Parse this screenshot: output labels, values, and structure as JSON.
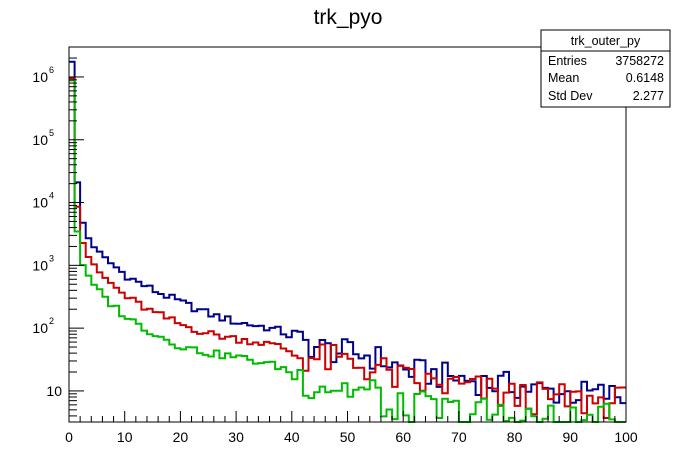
{
  "chart_data": {
    "type": "histogram",
    "title": "trk_pyo",
    "xlabel": "",
    "ylabel": "",
    "x_range": [
      0,
      100
    ],
    "y_range": [
      3.2,
      3000000
    ],
    "y_scale": "log",
    "bin_width": 1,
    "x_ticks": [
      0,
      10,
      20,
      30,
      40,
      50,
      60,
      70,
      80,
      90,
      100
    ],
    "x_tick_labels": [
      "0",
      "10",
      "20",
      "30",
      "40",
      "50",
      "60",
      "70",
      "80",
      "90",
      "100"
    ],
    "y_ticks": [
      {
        "value": 10,
        "base": "10",
        "exp": ""
      },
      {
        "value": 100,
        "base": "10",
        "exp": "2"
      },
      {
        "value": 1000,
        "base": "10",
        "exp": "3"
      },
      {
        "value": 10000,
        "base": "10",
        "exp": "4"
      },
      {
        "value": 100000,
        "base": "10",
        "exp": "5"
      },
      {
        "value": 1000000,
        "base": "10",
        "exp": "6"
      }
    ],
    "series": [
      {
        "color": "#00008b",
        "anchors": [
          [
            0,
            1800000
          ],
          [
            1,
            60000
          ],
          [
            2,
            7000
          ],
          [
            3,
            3200
          ],
          [
            4,
            2300
          ],
          [
            5,
            1700
          ],
          [
            6,
            1350
          ],
          [
            8,
            1000
          ],
          [
            10,
            720
          ],
          [
            12,
            560
          ],
          [
            15,
            410
          ],
          [
            20,
            260
          ],
          [
            25,
            170
          ],
          [
            30,
            125
          ],
          [
            35,
            105
          ],
          [
            38,
            90
          ],
          [
            42,
            58
          ],
          [
            46,
            46
          ],
          [
            50,
            40
          ],
          [
            53,
            38
          ],
          [
            56,
            32
          ],
          [
            60,
            22
          ],
          [
            64,
            19
          ],
          [
            68,
            17
          ],
          [
            72,
            15
          ],
          [
            76,
            13
          ],
          [
            80,
            12
          ],
          [
            85,
            10
          ],
          [
            90,
            9
          ],
          [
            95,
            9
          ],
          [
            100,
            8
          ]
        ]
      },
      {
        "color": "#cc0000",
        "anchors": [
          [
            0,
            1000000
          ],
          [
            1,
            25000
          ],
          [
            2,
            3200
          ],
          [
            3,
            1650
          ],
          [
            4,
            1150
          ],
          [
            5,
            860
          ],
          [
            6,
            680
          ],
          [
            8,
            470
          ],
          [
            10,
            330
          ],
          [
            12,
            255
          ],
          [
            15,
            180
          ],
          [
            20,
            115
          ],
          [
            25,
            82
          ],
          [
            30,
            68
          ],
          [
            35,
            58
          ],
          [
            38,
            50
          ],
          [
            42,
            35
          ],
          [
            46,
            31
          ],
          [
            50,
            28
          ],
          [
            53,
            25
          ],
          [
            56,
            21
          ],
          [
            60,
            14.5
          ],
          [
            64,
            13
          ],
          [
            68,
            12
          ],
          [
            72,
            11
          ],
          [
            76,
            9
          ],
          [
            80,
            8
          ],
          [
            85,
            7.5
          ],
          [
            90,
            7
          ],
          [
            95,
            6.8
          ],
          [
            100,
            6.5
          ]
        ]
      },
      {
        "color": "#00bb00",
        "anchors": [
          [
            0,
            900000
          ],
          [
            1,
            9000
          ],
          [
            2,
            1350
          ],
          [
            3,
            780
          ],
          [
            4,
            560
          ],
          [
            5,
            420
          ],
          [
            6,
            330
          ],
          [
            8,
            225
          ],
          [
            10,
            160
          ],
          [
            12,
            120
          ],
          [
            15,
            85
          ],
          [
            20,
            52
          ],
          [
            25,
            40
          ],
          [
            30,
            35
          ],
          [
            35,
            28
          ],
          [
            38,
            24
          ],
          [
            42,
            16
          ],
          [
            46,
            13
          ],
          [
            50,
            11
          ],
          [
            53,
            9.5
          ],
          [
            56,
            8
          ],
          [
            57,
            6
          ],
          [
            58,
            3
          ],
          [
            60,
            5
          ],
          [
            64,
            5
          ],
          [
            68,
            4.5
          ],
          [
            72,
            4.2
          ],
          [
            76,
            4
          ],
          [
            80,
            3.8
          ],
          [
            85,
            3.2
          ],
          [
            90,
            3
          ],
          [
            95,
            3
          ],
          [
            100,
            3
          ]
        ]
      }
    ]
  },
  "stats_box": {
    "name": "trk_outer_py",
    "rows": [
      {
        "label": "Entries",
        "value": "3758272"
      },
      {
        "label": "Mean",
        "value": "0.6148"
      },
      {
        "label": "Std Dev",
        "value": "2.277"
      }
    ]
  }
}
